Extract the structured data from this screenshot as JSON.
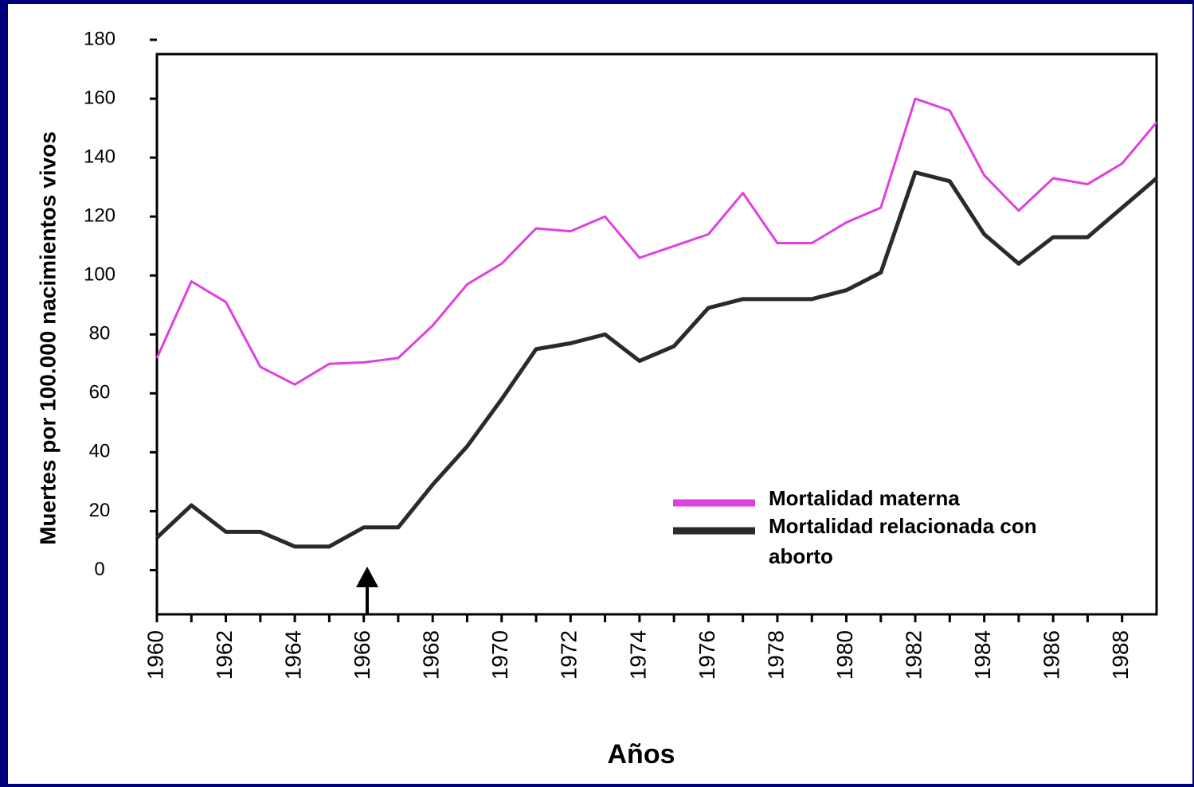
{
  "chart_data": {
    "type": "line",
    "xlabel": "Años",
    "ylabel": "Muertes por 100.000 nacimientos vivos",
    "x": [
      1960,
      1961,
      1962,
      1963,
      1964,
      1965,
      1966,
      1967,
      1968,
      1969,
      1970,
      1971,
      1972,
      1973,
      1974,
      1975,
      1976,
      1977,
      1978,
      1979,
      1980,
      1981,
      1982,
      1983,
      1984,
      1985,
      1986,
      1987,
      1988,
      1989
    ],
    "series": [
      {
        "name": "Mortalidad materna",
        "color": "#e040e0",
        "values": [
          72,
          98,
          91,
          69,
          63,
          70,
          70.5,
          72,
          83,
          97,
          104,
          116,
          115,
          120,
          106,
          110,
          114,
          128,
          111,
          111,
          118,
          123,
          160,
          156,
          134,
          122,
          133,
          131,
          138,
          152
        ]
      },
      {
        "name": "Mortalidad relacionada con aborto",
        "color": "#2a2a2a",
        "values": [
          11,
          22,
          13,
          13,
          8,
          8,
          14.5,
          14.5,
          29,
          42,
          58,
          75,
          77,
          80,
          71,
          76,
          89,
          92,
          92,
          92,
          95,
          101,
          135,
          132,
          114,
          104,
          113,
          113,
          123,
          133
        ]
      }
    ],
    "xlim": [
      1960,
      1989
    ],
    "xticks": [
      1960,
      1962,
      1964,
      1966,
      1968,
      1970,
      1972,
      1974,
      1976,
      1978,
      1980,
      1982,
      1984,
      1986,
      1988
    ],
    "ylim": [
      -15,
      180
    ],
    "yticks": [
      0,
      20,
      40,
      60,
      80,
      100,
      120,
      140,
      160,
      180
    ],
    "legend": "lower-right"
  }
}
